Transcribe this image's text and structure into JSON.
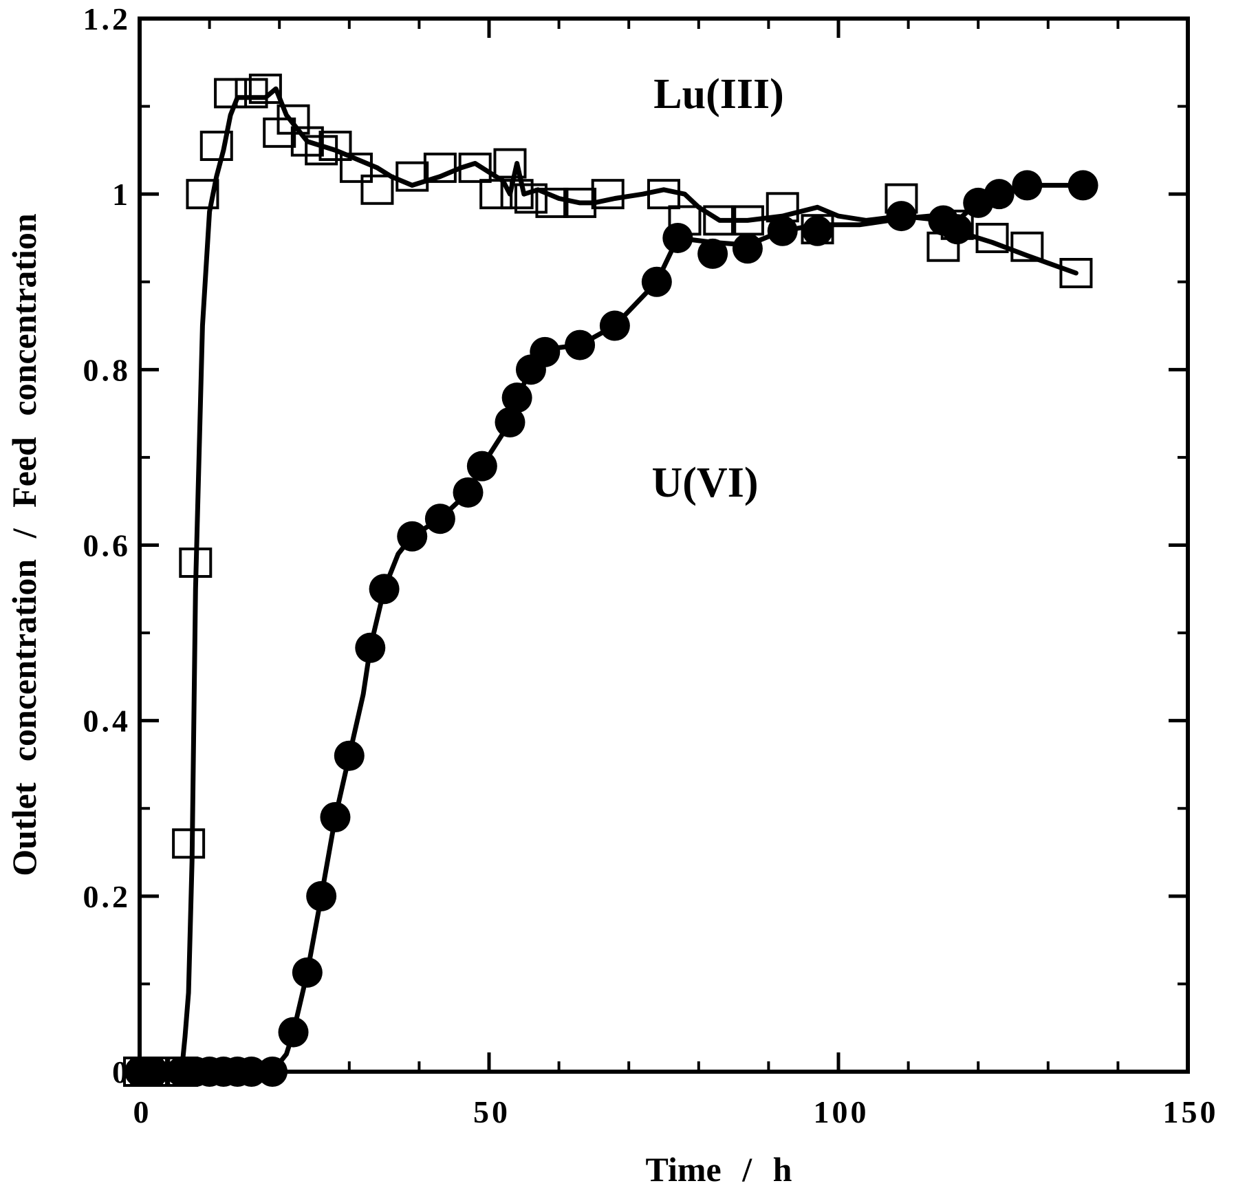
{
  "chart_data": {
    "type": "scatter",
    "title": "",
    "xlabel": "Time  /  h",
    "ylabel": "Outlet  concentration  /  Feed  concentration",
    "xlim": [
      0,
      150
    ],
    "ylim": [
      0,
      1.2
    ],
    "x_ticks": [
      0,
      50,
      100,
      150
    ],
    "x_tick_labels": [
      "0",
      "50",
      "100",
      "150"
    ],
    "y_ticks": [
      0,
      0.2,
      0.4,
      0.6,
      0.8,
      1,
      1.2
    ],
    "y_tick_labels": [
      "0",
      "0.2",
      "0.4",
      "0.6",
      "0.8",
      "1",
      "1.2"
    ],
    "grid": false,
    "series": [
      {
        "name": "Lu(III)",
        "marker": "open-square",
        "x": [
          0,
          1,
          2,
          6,
          7,
          8,
          9,
          11,
          13,
          16,
          18,
          20,
          22,
          24,
          26,
          28,
          31,
          34,
          39,
          43,
          48,
          51,
          53,
          54,
          56,
          59,
          63,
          67,
          75,
          78,
          83,
          87,
          92,
          97,
          109,
          115,
          117,
          122,
          127,
          134
        ],
        "y": [
          0,
          0,
          0,
          0,
          0.26,
          0.58,
          1.0,
          1.055,
          1.115,
          1.115,
          1.12,
          1.07,
          1.085,
          1.06,
          1.05,
          1.055,
          1.03,
          1.005,
          1.02,
          1.03,
          1.03,
          1.0,
          1.035,
          1.0,
          0.995,
          0.99,
          0.99,
          1.0,
          1.0,
          0.97,
          0.97,
          0.97,
          0.985,
          0.96,
          0.995,
          0.94,
          0.965,
          0.95,
          0.94,
          0.91
        ],
        "curve_x": [
          6,
          6.5,
          7,
          7.5,
          8,
          9,
          10,
          11,
          12,
          13,
          14,
          15,
          16,
          18,
          19.5,
          21,
          22,
          24,
          26,
          28,
          31,
          34,
          36,
          39,
          43,
          46,
          48,
          50,
          52,
          53,
          54,
          55,
          57,
          60,
          63,
          65,
          68,
          72,
          75,
          78,
          80,
          83,
          87,
          92,
          97,
          100,
          104,
          109,
          115,
          118,
          122,
          127,
          134
        ],
        "curve_y": [
          0,
          0.04,
          0.09,
          0.24,
          0.55,
          0.85,
          0.98,
          1.02,
          1.05,
          1.09,
          1.11,
          1.11,
          1.11,
          1.11,
          1.12,
          1.09,
          1.08,
          1.06,
          1.055,
          1.05,
          1.04,
          1.03,
          1.02,
          1.01,
          1.02,
          1.03,
          1.035,
          1.025,
          1.015,
          1.0,
          1.035,
          1.0,
          1.005,
          0.995,
          0.99,
          0.99,
          0.995,
          1.0,
          1.005,
          1.0,
          0.985,
          0.97,
          0.97,
          0.975,
          0.985,
          0.975,
          0.97,
          0.975,
          0.97,
          0.955,
          0.945,
          0.93,
          0.91
        ],
        "annotation": "Lu(III)"
      },
      {
        "name": "U(VI)",
        "marker": "filled-circle",
        "x": [
          0,
          2,
          6,
          8,
          10,
          12,
          14,
          16,
          19,
          22,
          24,
          26,
          28,
          30,
          33,
          35,
          39,
          43,
          47,
          49,
          53,
          54,
          56,
          58,
          63,
          68,
          74,
          77,
          82,
          87,
          92,
          97,
          109,
          115,
          117,
          120,
          123,
          127,
          135
        ],
        "y": [
          0,
          0,
          0,
          0,
          0,
          0,
          0,
          0,
          0,
          0.045,
          0.113,
          0.2,
          0.29,
          0.36,
          0.483,
          0.55,
          0.61,
          0.63,
          0.66,
          0.69,
          0.74,
          0.768,
          0.8,
          0.82,
          0.828,
          0.85,
          0.9,
          0.95,
          0.932,
          0.938,
          0.958,
          0.958,
          0.975,
          0.97,
          0.96,
          0.99,
          1.0,
          1.01,
          1.01
        ],
        "curve_x": [
          19,
          21,
          22,
          24,
          26,
          28,
          30,
          32,
          33,
          35,
          37,
          39,
          43,
          47,
          49,
          51,
          53,
          54,
          56,
          58,
          60,
          63,
          68,
          74,
          77,
          82,
          87,
          92,
          97,
          103,
          109,
          113,
          117,
          120,
          123,
          127,
          135
        ],
        "curve_y": [
          0,
          0.02,
          0.045,
          0.113,
          0.2,
          0.29,
          0.36,
          0.43,
          0.483,
          0.55,
          0.59,
          0.61,
          0.63,
          0.66,
          0.69,
          0.715,
          0.74,
          0.768,
          0.8,
          0.82,
          0.825,
          0.828,
          0.85,
          0.9,
          0.95,
          0.945,
          0.942,
          0.958,
          0.965,
          0.965,
          0.972,
          0.975,
          0.97,
          0.99,
          1.0,
          1.01,
          1.01
        ],
        "annotation": "U(VI)"
      }
    ]
  }
}
